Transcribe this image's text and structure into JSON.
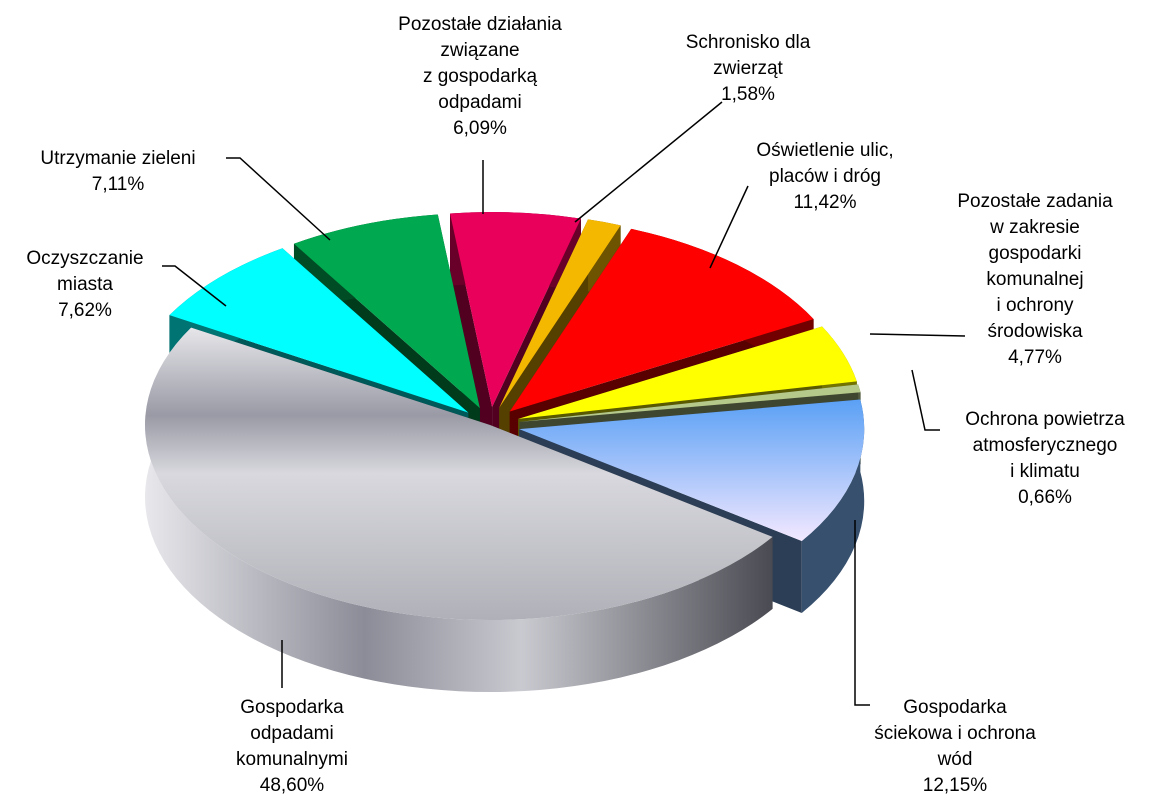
{
  "chart_data": {
    "type": "pie3d",
    "categories": [
      "Pozostałe działania\nzwiązane\nz gospodarką\nodpadami",
      "Schronisko dla\nzwierząt",
      "Oświetlenie ulic,\nplaców i dróg",
      "Pozostałe zadania\nw zakresie\ngospodarki\nkomunalnej\ni ochrony\nśrodowiska",
      "Ochrona powietrza\natmosferycznego\ni klimatu",
      "Gospodarka\nściekowa i ochrona\nwód",
      "Gospodarka\nodpadami\nkomunalnymi",
      "Oczyszczanie\nmiasta",
      "Utrzymanie zieleni"
    ],
    "values": [
      6.09,
      1.58,
      11.42,
      4.77,
      0.66,
      12.15,
      48.6,
      7.62,
      7.11
    ],
    "value_labels": [
      "6,09%",
      "1,58%",
      "11,42%",
      "4,77%",
      "0,66%",
      "12,15%",
      "48,60%",
      "7,62%",
      "7,11%"
    ],
    "colors": [
      "#e8005a",
      "#f5b800",
      "#ff0000",
      "#ffff00",
      "#b5c98a",
      "#7ab2f5",
      "#b9b9c2",
      "#00ffff",
      "#00a850"
    ]
  }
}
